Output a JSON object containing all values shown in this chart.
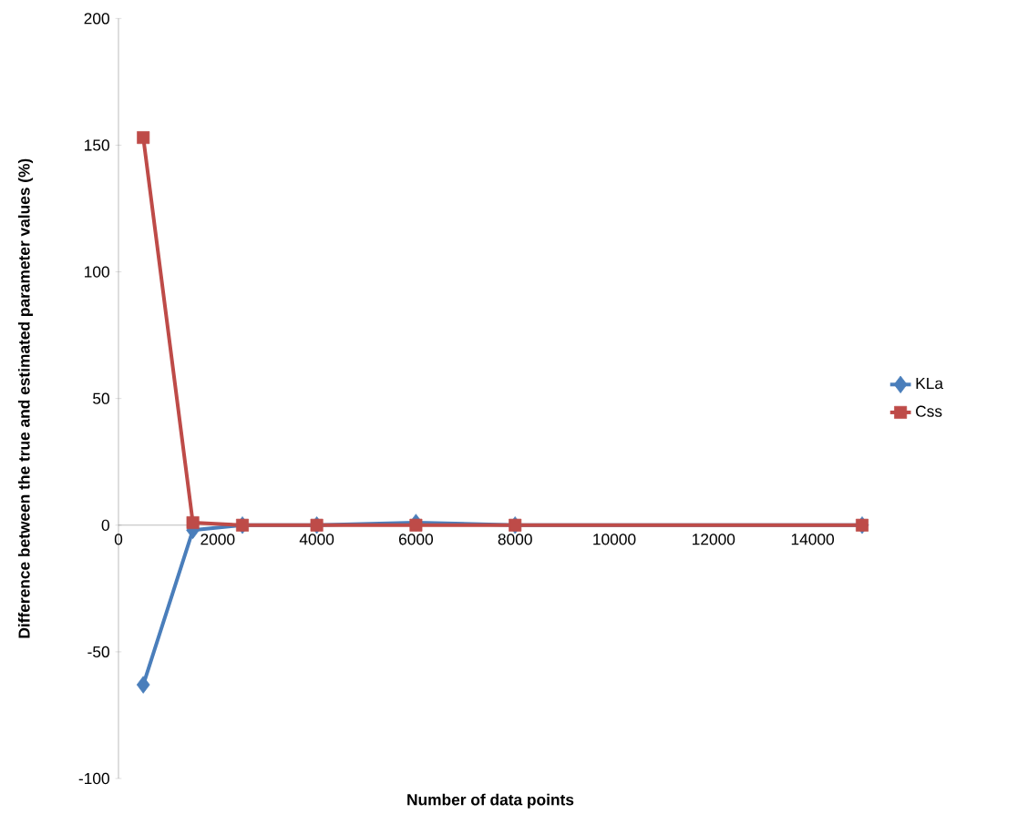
{
  "chart_data": {
    "type": "line",
    "xlabel": "Number of data points",
    "ylabel": "Difference between the true and estimated parameter values (%)",
    "x": [
      500,
      1500,
      2500,
      4000,
      6000,
      8000,
      15000
    ],
    "series": [
      {
        "name": "KLa",
        "color": "#4a7ebb",
        "marker": "diamond",
        "values": [
          -63,
          -2,
          0,
          0,
          1,
          0,
          0
        ]
      },
      {
        "name": "Css",
        "color": "#be4b48",
        "marker": "square",
        "values": [
          153,
          1,
          0,
          0,
          0,
          0,
          0
        ]
      }
    ],
    "xlim": [
      0,
      15000
    ],
    "ylim": [
      -100,
      200
    ],
    "xticks": [
      0,
      2000,
      4000,
      6000,
      8000,
      10000,
      12000,
      14000
    ],
    "yticks": [
      -100,
      -50,
      0,
      50,
      100,
      150,
      200
    ],
    "grid": false,
    "legend": "right",
    "line_style": "solid"
  }
}
